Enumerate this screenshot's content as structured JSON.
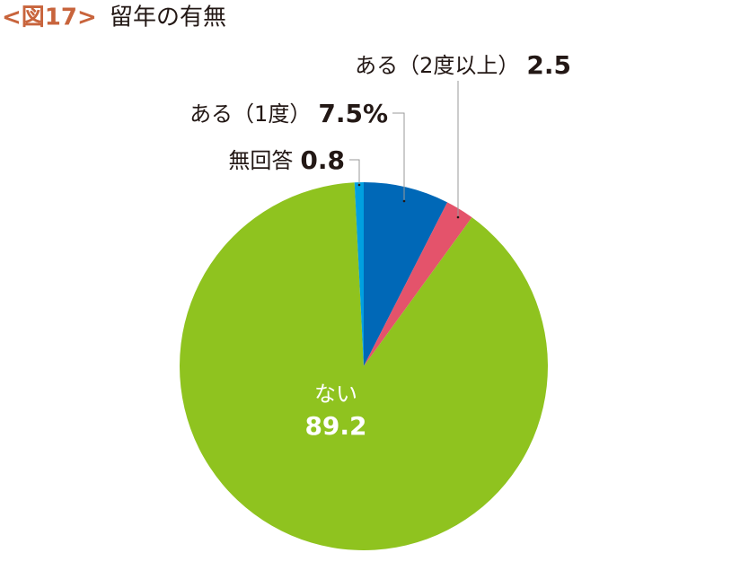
{
  "chart_data": {
    "type": "pie",
    "figure_label": "<図17>",
    "title": "留年の有無",
    "categories": [
      "ある（1度）",
      "ある（2度以上）",
      "ない",
      "無回答"
    ],
    "values": [
      7.5,
      2.5,
      89.2,
      0.8
    ],
    "value_labels": [
      "7.5%",
      "2.5",
      "89.2",
      "0.8"
    ],
    "colors": [
      "#0068b7",
      "#e4536b",
      "#8fc31f",
      "#00a0e0"
    ]
  }
}
